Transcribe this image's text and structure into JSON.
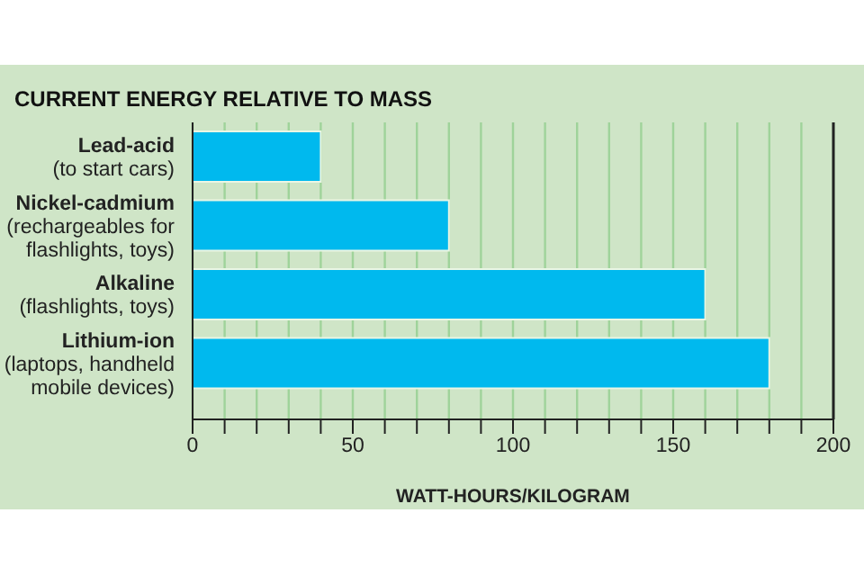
{
  "chart_data": {
    "type": "bar",
    "orientation": "horizontal",
    "title": "CURRENT ENERGY RELATIVE TO MASS",
    "xlabel": "WATT-HOURS/KILOGRAM",
    "categories": [
      "Lead-acid\n(to start cars)",
      "Nickel-cadmium\n(rechargeables for\nflashlights, toys)",
      "Alkaline\n(flashlights, toys)",
      "Lithium-ion\n(laptops, handheld\nmobile devices)"
    ],
    "values": [
      40,
      80,
      160,
      180
    ],
    "color": "#00b9ee",
    "xlim": [
      0,
      200
    ],
    "xticks": [
      0,
      {
        "value": 10,
        "label": null
      },
      {
        "value": 20,
        "label": null
      },
      {
        "value": 30,
        "label": null
      },
      {
        "value": 40,
        "label": null
      },
      50,
      {
        "value": 60,
        "label": null
      },
      {
        "value": 70,
        "label": null
      },
      {
        "value": 80,
        "label": null
      },
      {
        "value": 90,
        "label": null
      },
      100,
      {
        "value": 110,
        "label": null
      },
      {
        "value": 120,
        "label": null
      },
      {
        "value": 130,
        "label": null
      },
      {
        "value": 140,
        "label": null
      },
      150,
      {
        "value": 160,
        "label": null
      },
      {
        "value": 170,
        "label": null
      },
      {
        "value": 180,
        "label": null
      },
      {
        "value": 190,
        "label": null
      },
      200
    ],
    "grid": "x"
  }
}
